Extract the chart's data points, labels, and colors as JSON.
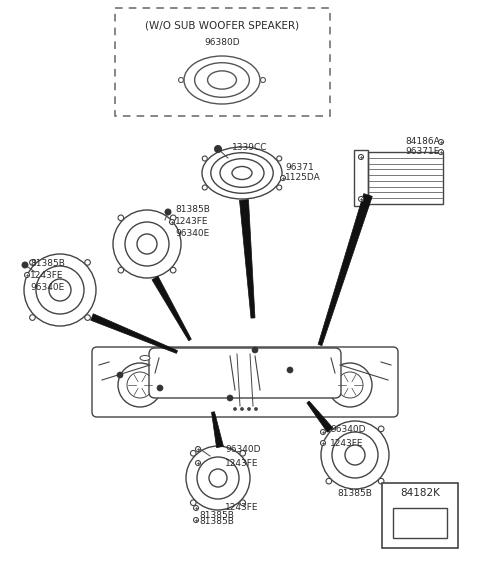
{
  "bg_color": "#ffffff",
  "fig_width": 4.8,
  "fig_height": 5.86,
  "dpi": 100,
  "labels": {
    "wo_sub_woofer": "(W/O SUB WOOFER SPEAKER)",
    "part_96380D": "96380D",
    "part_1339CC": "1339CC",
    "part_96371": "96371",
    "part_1125DA": "1125DA",
    "part_84186A": "84186A",
    "part_96371E": "96371E",
    "part_81385B": "81385B",
    "part_1243FE": "1243FE",
    "part_96340E": "96340E",
    "part_96340D": "96340D",
    "part_84182K": "84182K"
  },
  "text_color": "#2a2a2a",
  "dashed_box_color": "#666666",
  "font_size": 6.5,
  "title_font_size": 7.5
}
